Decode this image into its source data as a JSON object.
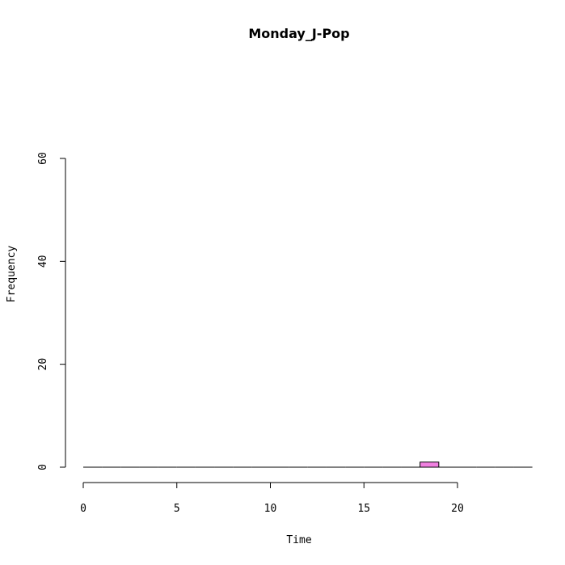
{
  "chart_data": {
    "type": "bar",
    "title": "Monday_J-Pop",
    "xlabel": "Time",
    "ylabel": "Frequency",
    "xlim": [
      0,
      24
    ],
    "ylim": [
      0,
      60
    ],
    "x_ticks": [
      "0",
      "5",
      "10",
      "15",
      "20"
    ],
    "y_ticks": [
      "0",
      "20",
      "40",
      "60"
    ],
    "bin_width": 1,
    "bins": [
      0,
      1,
      2,
      3,
      4,
      5,
      6,
      7,
      8,
      9,
      10,
      11,
      12,
      13,
      14,
      15,
      16,
      17,
      18,
      19,
      20,
      21,
      22,
      23
    ],
    "values": [
      0,
      0,
      0,
      0,
      0,
      0,
      0,
      0,
      0,
      0,
      0,
      0,
      0,
      0,
      0,
      0,
      0,
      0,
      1,
      0,
      0,
      0,
      0,
      0
    ],
    "bar_color": "#f080e0",
    "grid": false,
    "legend": "none"
  }
}
